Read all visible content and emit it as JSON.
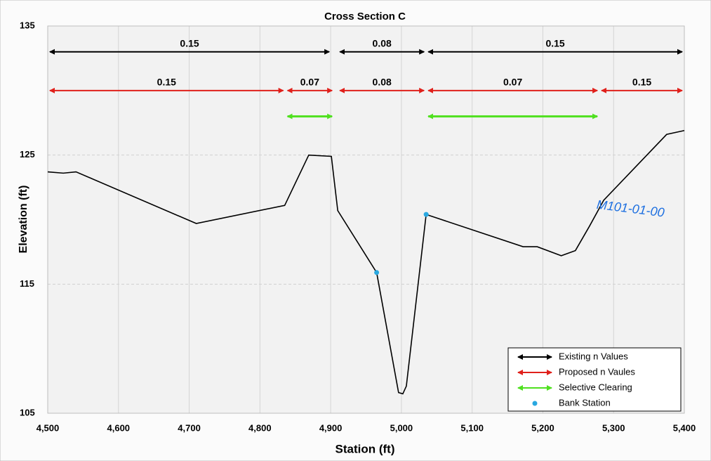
{
  "chart_data": {
    "type": "line",
    "title": "Cross Section C",
    "x_label": "Station (ft)",
    "y_label": "Elevation (ft)",
    "xlim": [
      4500,
      5400
    ],
    "xticks": [
      {
        "value": 4500,
        "label": "4,500"
      },
      {
        "value": 4600,
        "label": "4,600"
      },
      {
        "value": 4700,
        "label": "4,700"
      },
      {
        "value": 4800,
        "label": "4,800"
      },
      {
        "value": 4900,
        "label": "4,900"
      },
      {
        "value": 5000,
        "label": "5,000"
      },
      {
        "value": 5100,
        "label": "5,100"
      },
      {
        "value": 5200,
        "label": "5,200"
      },
      {
        "value": 5300,
        "label": "5,300"
      },
      {
        "value": 5400,
        "label": "5,400"
      }
    ],
    "ylim": [
      105,
      135
    ],
    "yticks": [
      105,
      115,
      125,
      135
    ],
    "grid": true,
    "profile": {
      "color": "#000000",
      "x": [
        4500,
        4522,
        4540,
        4710,
        4835,
        4869,
        4901,
        4910,
        4965,
        4996,
        5002,
        5007,
        5035,
        5172,
        5192,
        5226,
        5246,
        5266,
        5286,
        5375,
        5400
      ],
      "values": [
        123.7,
        123.6,
        123.7,
        119.7,
        121.1,
        125.0,
        124.9,
        120.7,
        115.9,
        106.6,
        106.5,
        107.1,
        120.4,
        117.9,
        117.9,
        117.2,
        117.6,
        119.5,
        121.5,
        126.6,
        126.9
      ]
    },
    "series": [
      {
        "name": "Bank Station",
        "color": "#29a8e0",
        "x": [
          4965,
          5035
        ],
        "values": [
          115.9,
          120.4
        ]
      }
    ],
    "ranges": [
      {
        "name": "Existing n Values",
        "color": "#000000",
        "y": 133,
        "segments": [
          {
            "x": [
              4500,
              4901
            ],
            "n": 0.15
          },
          {
            "x": [
              4910,
              5035
            ],
            "n": 0.08
          },
          {
            "x": [
              5035,
              5400
            ],
            "n": 0.15
          }
        ]
      },
      {
        "name": "Proposed n Vaules",
        "color": "#e0201b",
        "y": 130,
        "segments": [
          {
            "x": [
              4500,
              4836
            ],
            "n": 0.15
          },
          {
            "x": [
              4836,
              4905
            ],
            "n": 0.07
          },
          {
            "x": [
              4910,
              5035
            ],
            "n": 0.08
          },
          {
            "x": [
              5035,
              5280
            ],
            "n": 0.07
          },
          {
            "x": [
              5280,
              5400
            ],
            "n": 0.15
          }
        ]
      },
      {
        "name": "Selective Clearing",
        "color": "#4fe01f",
        "y": 128,
        "segments": [
          {
            "x": [
              4836,
              4905
            ]
          },
          {
            "x": [
              5035,
              5280
            ]
          }
        ]
      }
    ],
    "annotation": "M101-01-00"
  }
}
